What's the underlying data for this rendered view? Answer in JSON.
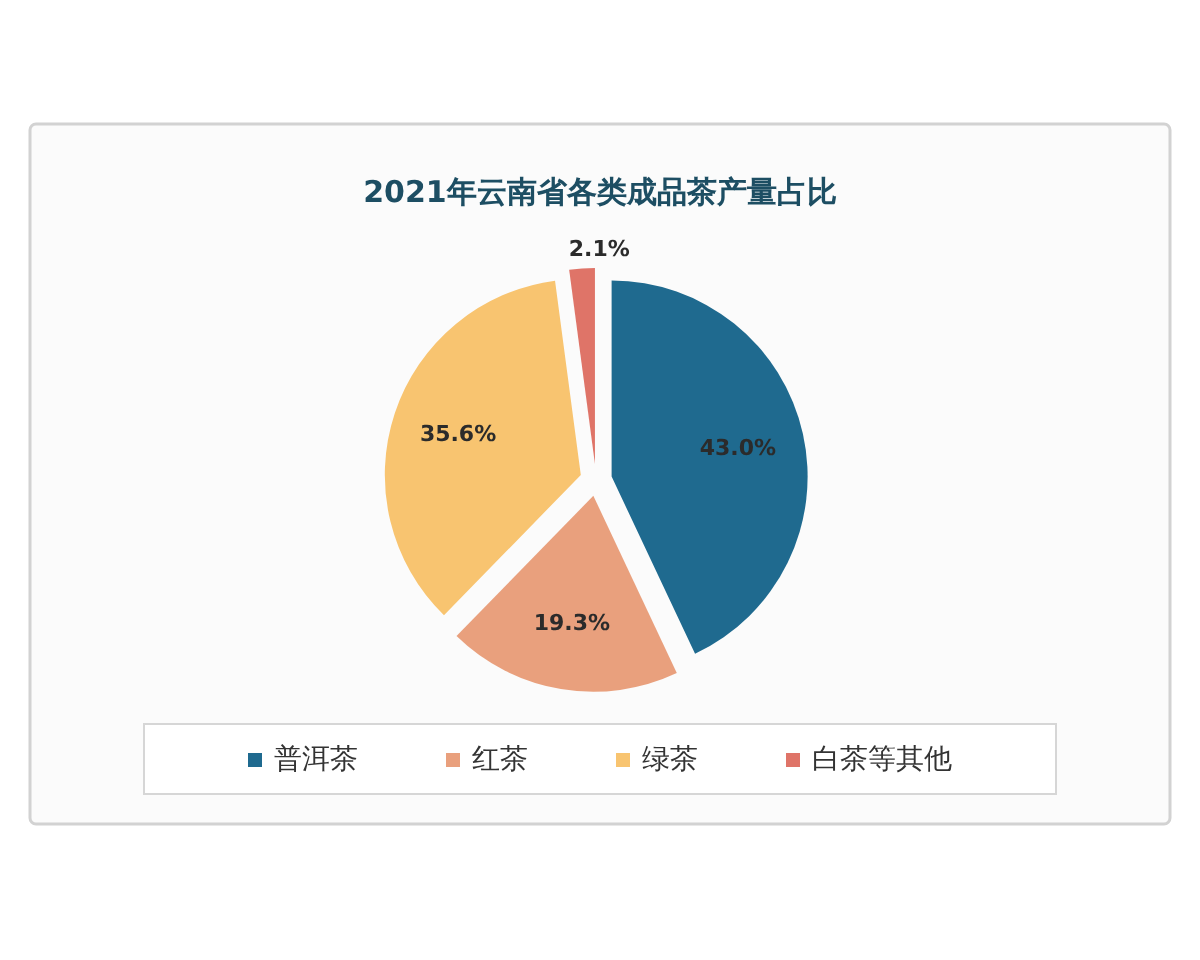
{
  "chart_data": {
    "type": "pie",
    "title": "2021年云南省各类成品茶产量占比",
    "categories": [
      "普洱茶",
      "红茶",
      "绿茶",
      "白茶等其他"
    ],
    "values": [
      43.0,
      19.3,
      35.6,
      2.1
    ],
    "value_labels": [
      "43.0%",
      "19.3%",
      "35.6%",
      "2.1%"
    ],
    "colors": [
      "#1f6a8f",
      "#e9a07d",
      "#f8c470",
      "#df7468"
    ],
    "legend": "bottom"
  }
}
